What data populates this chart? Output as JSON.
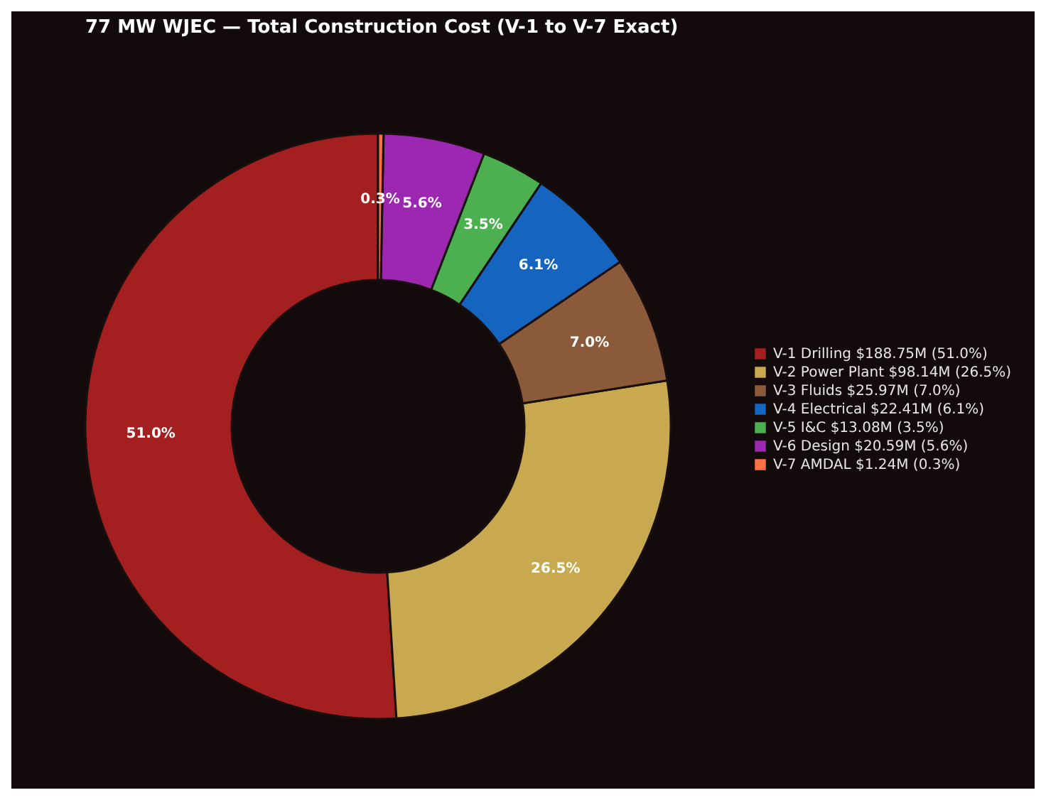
{
  "chart_data": {
    "type": "donut",
    "title": "77 MW WJEC — Total Construction Cost (V-1 to V-7 Exact)",
    "categories": [
      "V-1 Drilling  $188.75M  (51.0%)",
      "V-2 Power Plant  $98.14M  (26.5%)",
      "V-3 Fluids  $25.97M  (7.0%)",
      "V-4 Electrical  $22.41M  (6.1%)",
      "V-5 I&C  $13.08M  (3.5%)",
      "V-6 Design  $20.59M  (5.6%)",
      "V-7 AMDAL  $1.24M  (0.3%)"
    ],
    "values": [
      51.0,
      26.5,
      7.0,
      6.1,
      3.5,
      5.6,
      0.3
    ],
    "value_labels": [
      "51.0%",
      "26.5%",
      "7.0%",
      "6.1%",
      "3.5%",
      "5.6%",
      "0.3%"
    ],
    "colors": [
      "#a31f20",
      "#c9a94f",
      "#8b5a3a",
      "#1565c0",
      "#4caf50",
      "#9c27b0",
      "#ff7043"
    ],
    "legend": "right"
  }
}
